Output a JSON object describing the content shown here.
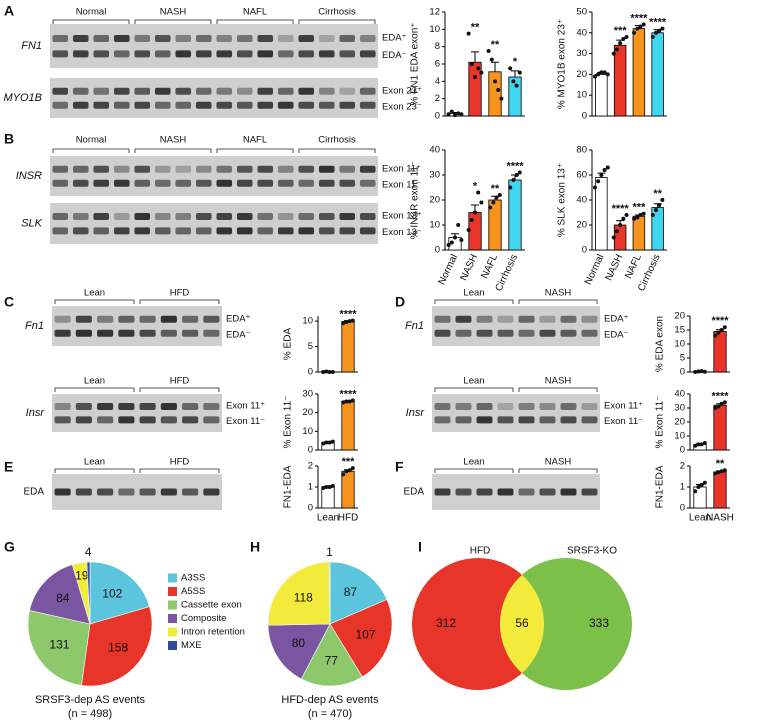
{
  "gels": [
    {
      "panel": "A",
      "blocks": [
        {
          "groups": [
            "Normal",
            "NASH",
            "NAFL",
            "Cirrhosis"
          ],
          "gene": "FN1",
          "bands": [
            "EDA⁺",
            "EDA⁻"
          ]
        },
        {
          "gene": "MYO1B",
          "bands": [
            "Exon 23⁺",
            "Exon 23⁻"
          ]
        }
      ]
    },
    {
      "panel": "B",
      "blocks": [
        {
          "groups": [
            "Normal",
            "NASH",
            "NAFL",
            "Cirrhosis"
          ],
          "gene": "INSR",
          "bands": [
            "Exon 11⁺",
            "Exon 11⁻"
          ]
        },
        {
          "gene": "SLK",
          "bands": [
            "Exon 13⁺",
            "Exon 13⁻"
          ]
        }
      ]
    },
    {
      "panel": "C",
      "blocks": [
        {
          "groups": [
            "Lean",
            "HFD"
          ],
          "gene": "Fn1",
          "bands": [
            "EDA⁺",
            "EDA⁻"
          ]
        },
        {
          "groups": [
            "Lean",
            "HFD"
          ],
          "gene": "Insr",
          "bands": [
            "Exon 11⁺",
            "Exon 11⁻"
          ]
        }
      ]
    },
    {
      "panel": "D",
      "blocks": [
        {
          "groups": [
            "Lean",
            "NASH"
          ],
          "gene": "Fn1",
          "bands": [
            "EDA⁺",
            "EDA⁻"
          ]
        },
        {
          "groups": [
            "Lean",
            "NASH"
          ],
          "gene": "Insr",
          "bands": [
            "Exon 11⁺",
            "Exon 11⁻"
          ]
        }
      ]
    },
    {
      "panel": "E",
      "blocks": [
        {
          "groups": [
            "Lean",
            "HFD"
          ],
          "gene": "EDA"
        }
      ]
    },
    {
      "panel": "F",
      "blocks": [
        {
          "groups": [
            "Lean",
            "NASH"
          ],
          "gene": "EDA"
        }
      ]
    }
  ],
  "chart_data": [
    {
      "type": "bar",
      "ylabel": "% FN1 EDA exon⁺",
      "categories": [
        null,
        null,
        null,
        null
      ],
      "values": [
        0.3,
        6.2,
        5.1,
        4.5
      ],
      "errors": [
        0.1,
        1.2,
        1.1,
        0.7
      ],
      "points": [
        [
          0.2,
          0.5,
          0.1,
          0.3,
          0.2
        ],
        [
          9.5,
          6,
          4.5,
          5.5,
          5
        ],
        [
          7.5,
          6.5,
          4,
          3,
          2
        ],
        [
          5.5,
          4,
          3.5,
          5
        ]
      ],
      "significance": [
        null,
        "**",
        "**",
        "*"
      ],
      "colors": [
        "#ffffff",
        "#e8352a",
        "#f7941d",
        "#3fd6f0"
      ],
      "ylim": [
        0,
        12
      ],
      "yticks": [
        0,
        2,
        4,
        6,
        8,
        10,
        12
      ]
    },
    {
      "type": "bar",
      "ylabel": "% MYO1B exon 23⁺",
      "categories": [
        null,
        null,
        null,
        null
      ],
      "values": [
        20,
        34,
        42,
        40
      ],
      "errors": [
        1,
        2.5,
        1.5,
        1.5
      ],
      "points": [
        [
          19,
          20,
          21,
          21,
          20
        ],
        [
          30,
          32,
          35,
          37,
          38
        ],
        [
          40,
          42,
          43,
          44
        ],
        [
          38,
          40,
          41,
          42
        ]
      ],
      "significance": [
        null,
        "***",
        "****",
        "****"
      ],
      "colors": [
        "#ffffff",
        "#e8352a",
        "#f7941d",
        "#3fd6f0"
      ],
      "ylim": [
        0,
        50
      ],
      "yticks": [
        0,
        10,
        20,
        30,
        40,
        50
      ]
    },
    {
      "type": "bar",
      "ylabel": "% INSR exon 11⁻",
      "categories": [
        "Normal",
        "NASH",
        "NAFL",
        "Cirrhosis"
      ],
      "values": [
        5,
        15,
        20,
        28
      ],
      "errors": [
        1.5,
        3,
        1.5,
        2
      ],
      "points": [
        [
          2,
          3,
          5,
          10,
          4
        ],
        [
          8,
          12,
          15,
          23,
          19
        ],
        [
          17,
          19,
          21,
          22
        ],
        [
          25,
          28,
          30,
          31
        ]
      ],
      "significance": [
        null,
        "*",
        "**",
        "****"
      ],
      "colors": [
        "#ffffff",
        "#e8352a",
        "#f7941d",
        "#3fd6f0"
      ],
      "ylim": [
        0,
        40
      ],
      "yticks": [
        0,
        10,
        20,
        30,
        40
      ]
    },
    {
      "type": "bar",
      "ylabel": "% SLK exon 13⁺",
      "categories": [
        "Normal",
        "NASH",
        "NAFL",
        "Cirrhosis"
      ],
      "values": [
        58,
        20,
        27,
        34
      ],
      "errors": [
        3.5,
        3.5,
        1,
        3
      ],
      "points": [
        [
          50,
          55,
          60,
          64,
          66
        ],
        [
          10,
          15,
          20,
          25,
          28
        ],
        [
          25,
          26,
          28,
          29
        ],
        [
          28,
          32,
          36,
          40
        ]
      ],
      "significance": [
        null,
        "****",
        "***",
        "**"
      ],
      "colors": [
        "#ffffff",
        "#e8352a",
        "#f7941d",
        "#3fd6f0"
      ],
      "ylim": [
        0,
        80
      ],
      "yticks": [
        0,
        20,
        40,
        60,
        80
      ]
    },
    {
      "type": "bar",
      "ylabel": "% EDA",
      "categories": [
        null,
        null
      ],
      "values": [
        0.05,
        9.9
      ],
      "errors": [
        0.05,
        0.2
      ],
      "points": [
        [
          0,
          0.1,
          0,
          0
        ],
        [
          9.6,
          9.8,
          10,
          10.1
        ]
      ],
      "significance": [
        null,
        "****"
      ],
      "colors": [
        "#ffffff",
        "#f7941d"
      ],
      "ylim": [
        0,
        11
      ],
      "yticks": [
        0,
        5,
        10
      ]
    },
    {
      "type": "bar",
      "ylabel": "% Exon 11⁻",
      "categories": [
        null,
        null
      ],
      "values": [
        4,
        26
      ],
      "errors": [
        0.3,
        0.3
      ],
      "points": [
        [
          3.5,
          4,
          4,
          4.5
        ],
        [
          25.5,
          26,
          26,
          26.5
        ]
      ],
      "significance": [
        null,
        "****"
      ],
      "colors": [
        "#ffffff",
        "#f7941d"
      ],
      "ylim": [
        0,
        30
      ],
      "yticks": [
        0,
        10,
        20,
        30
      ]
    },
    {
      "type": "bar",
      "ylabel": "% EDA exon",
      "categories": [
        null,
        null
      ],
      "values": [
        0.2,
        14.5
      ],
      "errors": [
        0.1,
        0.6
      ],
      "points": [
        [
          0,
          0.2,
          0.3,
          0.1
        ],
        [
          13,
          14,
          15,
          16
        ]
      ],
      "significance": [
        null,
        "****"
      ],
      "colors": [
        "#ffffff",
        "#e8352a"
      ],
      "ylim": [
        0,
        20
      ],
      "yticks": [
        0,
        5,
        10,
        15,
        20
      ]
    },
    {
      "type": "bar",
      "ylabel": "% Exon 11⁻",
      "categories": [
        null,
        null
      ],
      "values": [
        4,
        32
      ],
      "errors": [
        0.5,
        1
      ],
      "points": [
        [
          3,
          4,
          4,
          5
        ],
        [
          30,
          31,
          33,
          34
        ]
      ],
      "significance": [
        null,
        "****"
      ],
      "colors": [
        "#ffffff",
        "#e8352a"
      ],
      "ylim": [
        0,
        40
      ],
      "yticks": [
        0,
        10,
        20,
        30,
        40
      ]
    },
    {
      "type": "bar",
      "ylabel": "FN1-EDA",
      "categories": [
        "Lean",
        "HFD"
      ],
      "values": [
        1,
        1.75
      ],
      "errors": [
        0.03,
        0.07
      ],
      "points": [
        [
          0.95,
          1,
          1,
          1.05
        ],
        [
          1.6,
          1.75,
          1.8,
          1.9
        ]
      ],
      "significance": [
        null,
        "***"
      ],
      "colors": [
        "#ffffff",
        "#f7941d"
      ],
      "ylim": [
        0,
        2
      ],
      "yticks": [
        0,
        1,
        2
      ]
    },
    {
      "type": "bar",
      "ylabel": "FN1-EDA",
      "categories": [
        "Lean",
        "NASH"
      ],
      "values": [
        1,
        1.72
      ],
      "errors": [
        0.12,
        0.05
      ],
      "points": [
        [
          0.8,
          1,
          1.1,
          1.2
        ],
        [
          1.65,
          1.7,
          1.75,
          1.8
        ]
      ],
      "significance": [
        null,
        "**"
      ],
      "colors": [
        "#ffffff",
        "#e8352a"
      ],
      "ylim": [
        0,
        2
      ],
      "yticks": [
        0,
        1,
        2
      ]
    },
    {
      "type": "pie",
      "panel": "G",
      "title": "SRSF3-dep AS events",
      "subtitle": "(n = 498)",
      "categories": [
        "A3SS",
        "A5SS",
        "Cassette exon",
        "Composite",
        "Intron retention",
        "MXE"
      ],
      "values": [
        102,
        158,
        131,
        84,
        19,
        4
      ],
      "colors": [
        "#5cc5de",
        "#e8352a",
        "#8dc96b",
        "#7a55a2",
        "#f3eb3b",
        "#2f4b9b"
      ],
      "legend": true
    },
    {
      "type": "pie",
      "panel": "H",
      "title": "HFD-dep AS events",
      "subtitle": "(n = 470)",
      "categories": [
        "A3SS",
        "A5SS",
        "Cassette exon",
        "Composite",
        "Intron retention",
        "MXE"
      ],
      "values": [
        87,
        107,
        77,
        80,
        118,
        1
      ],
      "colors": [
        "#5cc5de",
        "#e8352a",
        "#8dc96b",
        "#7a55a2",
        "#f3eb3b",
        "#2f4b9b"
      ],
      "legend": false
    },
    {
      "type": "venn",
      "panel": "I",
      "sets": [
        {
          "name": "HFD",
          "color": "#e8352a",
          "count": 312
        },
        {
          "name": "SRSF3-KO",
          "color": "#7cc04a",
          "count": 333
        }
      ],
      "intersection": 56,
      "intersection_color": "#f3eb3b"
    }
  ]
}
